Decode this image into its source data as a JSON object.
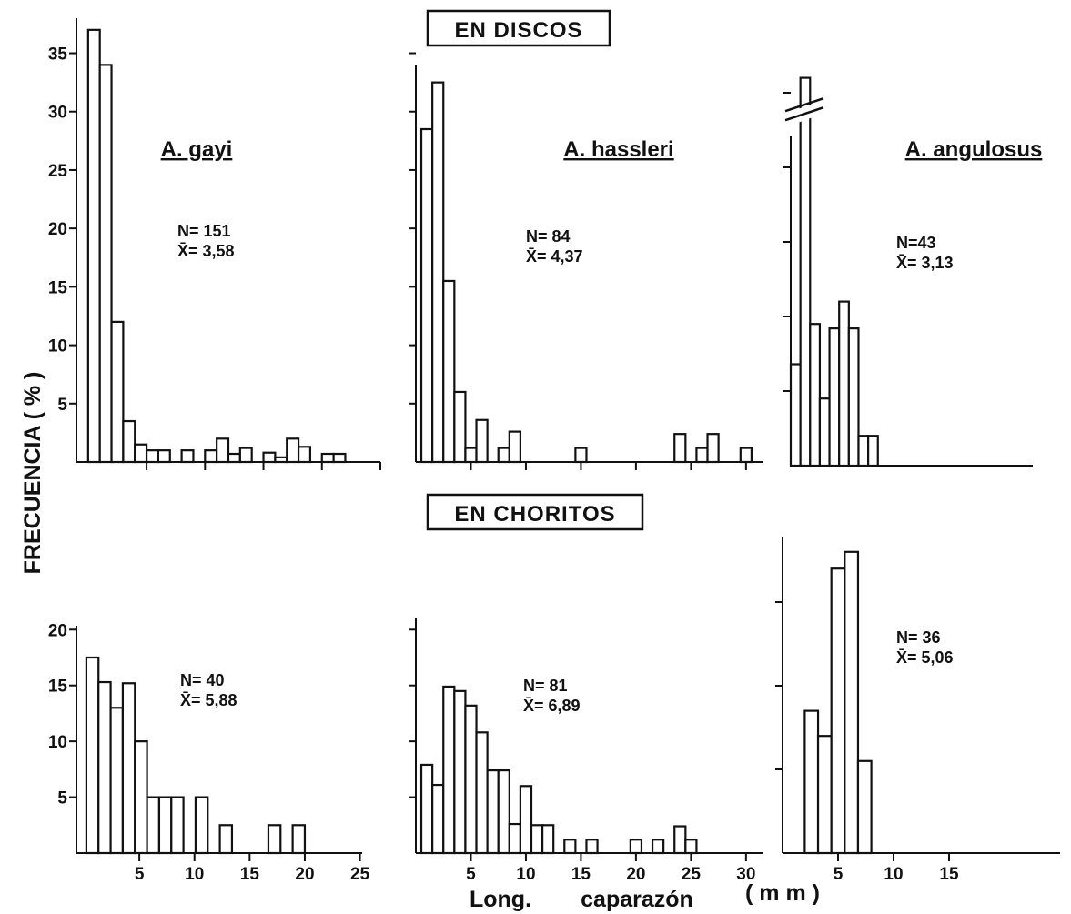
{
  "figure": {
    "group_labels": [
      "EN DISCOS",
      "EN CHORITOS"
    ],
    "y_axis_title": "FRECUENCIA ( % )",
    "x_axis_title": {
      "part1": "Long.",
      "part2": "caparazón",
      "unit": "( m m )"
    }
  },
  "chart_data": [
    {
      "type": "bar",
      "group": "EN DISCOS",
      "species": "A. gayi",
      "stats": {
        "n": "N= 151",
        "mean": "X̄= 3,58"
      },
      "x_range": [
        -1,
        25
      ],
      "x_ticks": [
        5,
        10,
        15,
        20,
        25
      ],
      "x_tick_labels": [],
      "y_range": [
        0,
        38
      ],
      "y_ticks": [
        5,
        10,
        15,
        20,
        25,
        30,
        35
      ],
      "y_tick_labels": [
        "5",
        "10",
        "15",
        "20",
        "25",
        "30",
        "35"
      ],
      "bin_start": 0,
      "bin_width": 1,
      "values": [
        37,
        34,
        12,
        3.5,
        1.5,
        1,
        1,
        0,
        1,
        0,
        1,
        2,
        0.7,
        1.2,
        0,
        0.8,
        0.4,
        2,
        1.3,
        0,
        0.7,
        0.7,
        0,
        0,
        0
      ]
    },
    {
      "type": "bar",
      "group": "EN DISCOS",
      "species": "A. hassleri",
      "stats": {
        "n": "N= 84",
        "mean": "X̄= 4,37"
      },
      "x_range": [
        0,
        31.5
      ],
      "x_ticks": [
        5,
        10,
        15,
        20,
        25,
        30
      ],
      "x_tick_labels": [],
      "y_range": [
        0,
        38
      ],
      "y_ticks": [
        5,
        10,
        15,
        20,
        25,
        30,
        35
      ],
      "y_tick_labels": [],
      "bin_start": 0.5,
      "bin_width": 1,
      "values": [
        28.5,
        32.5,
        15.5,
        6,
        1.2,
        3.6,
        0,
        1.2,
        2.6,
        0,
        0,
        0,
        0,
        0,
        1.2,
        0,
        0,
        0,
        0,
        0,
        0,
        0,
        0,
        2.4,
        0,
        1.2,
        2.4,
        0,
        0,
        1.2
      ]
    },
    {
      "type": "bar",
      "group": "EN DISCOS",
      "species": "A. angulosus",
      "stats": {
        "n": "N=43",
        "mean": "X̄= 3,13"
      },
      "x_range": [
        0,
        25
      ],
      "x_ticks": [],
      "x_tick_labels": [],
      "y_range": [
        0,
        30
      ],
      "y_ticks": [
        5,
        10,
        15,
        20,
        25
      ],
      "y_tick_labels": [],
      "axis_break": true,
      "bin_start": 0,
      "bin_width": 1,
      "values": [
        6.8,
        26,
        9.5,
        4.5,
        9.2,
        11,
        9.2,
        2,
        2
      ]
    },
    {
      "type": "bar",
      "group": "EN CHORITOS",
      "species": "A. gayi",
      "stats": {
        "n": "N= 40",
        "mean": "X̄= 5,88"
      },
      "x_range": [
        -0.7,
        25.2
      ],
      "x_ticks": [
        5,
        10,
        15,
        20,
        25
      ],
      "x_tick_labels": [
        "5",
        "10",
        "15",
        "20",
        "25"
      ],
      "y_range": [
        0,
        21
      ],
      "y_ticks": [
        5,
        10,
        15,
        20
      ],
      "y_tick_labels": [
        "5",
        "10",
        "15",
        "20"
      ],
      "bin_start": 0.2,
      "bin_width": 1.1,
      "values": [
        17.5,
        15.3,
        13,
        15.2,
        10,
        5,
        5,
        5,
        0,
        5,
        0,
        2.5,
        0,
        0,
        0,
        2.5,
        0,
        2.5
      ]
    },
    {
      "type": "bar",
      "group": "EN CHORITOS",
      "species": "A. hassleri",
      "stats": {
        "n": "N= 81",
        "mean": "X̄= 6,89"
      },
      "x_range": [
        0,
        31.5
      ],
      "x_ticks": [
        5,
        10,
        15,
        20,
        25,
        30
      ],
      "x_tick_labels": [
        "5",
        "10",
        "15",
        "20",
        "25",
        "30"
      ],
      "y_range": [
        0,
        21
      ],
      "y_ticks": [
        5,
        10,
        15,
        20
      ],
      "y_tick_labels": [],
      "bin_start": 0.5,
      "bin_width": 1,
      "values": [
        7.9,
        6.1,
        14.9,
        14.5,
        13.2,
        10.8,
        7.4,
        7.4,
        2.6,
        6,
        2.5,
        2.5,
        0,
        1.2,
        0,
        1.2,
        0,
        0,
        0,
        1.2,
        0,
        1.2,
        0,
        2.4,
        1.2
      ]
    },
    {
      "type": "bar",
      "group": "EN CHORITOS",
      "species": "A. angulosus",
      "stats": {
        "n": "N= 36",
        "mean": "X̄= 5,06"
      },
      "x_range": [
        0,
        25
      ],
      "x_ticks": [
        5,
        10,
        15
      ],
      "x_tick_labels": [
        "5",
        "10",
        "15"
      ],
      "y_range": [
        0,
        40
      ],
      "y_ticks": [
        10,
        20,
        30
      ],
      "y_tick_labels": [],
      "bin_start": 2,
      "bin_width": 1.2,
      "values": [
        17,
        14,
        34,
        36,
        11
      ]
    }
  ]
}
